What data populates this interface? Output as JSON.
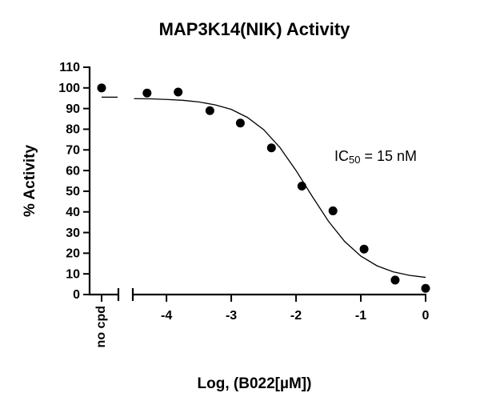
{
  "chart_data": {
    "type": "scatter",
    "title": "MAP3K14(NIK) Activity",
    "y_label": "% Activity",
    "x_label": "Log, (B022[µM])",
    "annotation": {
      "text": "IC",
      "subscript": "50",
      "rest": " = 15 nM"
    },
    "categories": [
      "no cpd"
    ],
    "category_values": [
      100
    ],
    "category_fit": [
      95.5
    ],
    "x": [
      -4.3,
      -3.82,
      -3.33,
      -2.86,
      -2.38,
      -1.91,
      -1.43,
      -0.95,
      -0.47,
      0
    ],
    "values": [
      97.5,
      98,
      89,
      83,
      71,
      52.5,
      40.5,
      22,
      7,
      3
    ],
    "fit_x": [
      -4.5,
      -4.25,
      -4,
      -3.75,
      -3.5,
      -3.25,
      -3,
      -2.75,
      -2.5,
      -2.25,
      -2,
      -1.75,
      -1.5,
      -1.25,
      -1,
      -0.75,
      -0.5,
      -0.25,
      0
    ],
    "fit_values": [
      94.8,
      94.7,
      94.4,
      94.0,
      93.2,
      91.8,
      89.6,
      85.7,
      79.8,
      71.2,
      60.0,
      47.5,
      35.5,
      25.7,
      18.6,
      13.9,
      11.0,
      9.3,
      8.3
    ],
    "color": "#000000",
    "xlim": [
      -4.52,
      0
    ],
    "xticks": [
      -4,
      -3,
      -2,
      -1,
      0
    ],
    "ylim": [
      0,
      110
    ],
    "yticks": [
      0,
      10,
      20,
      30,
      40,
      50,
      60,
      70,
      80,
      90,
      100,
      110
    ]
  }
}
